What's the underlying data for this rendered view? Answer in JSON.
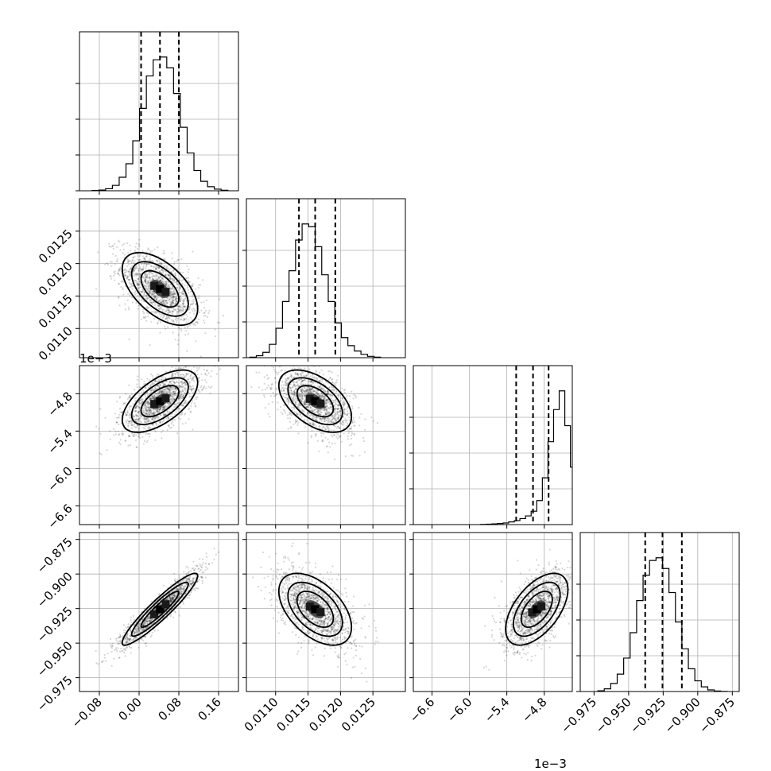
{
  "chart_data": {
    "type": "corner",
    "title": "",
    "n_params": 4,
    "params": [
      {
        "index": 0,
        "xlim": [
          -0.12,
          0.2
        ],
        "ticks": [
          -0.08,
          0.0,
          0.08,
          0.16
        ],
        "tick_labels": [
          "−0.08",
          "0.00",
          "0.08",
          "0.16"
        ],
        "offset_label": "",
        "mean": 0.042,
        "sigma": 0.038,
        "quantiles": [
          0.004,
          0.042,
          0.08
        ],
        "hist_bins": [
          0.002,
          0.005,
          0.015,
          0.04,
          0.1,
          0.2,
          0.37,
          0.61,
          0.85,
          0.97,
          0.99,
          0.91,
          0.72,
          0.47,
          0.28,
          0.15,
          0.07,
          0.03,
          0.012,
          0.004
        ]
      },
      {
        "index": 1,
        "xlim": [
          0.01055,
          0.013
        ],
        "ticks": [
          0.011,
          0.0115,
          0.012,
          0.0125
        ],
        "tick_labels": [
          "0.0110",
          "0.0115",
          "0.0120",
          "0.0125"
        ],
        "offset_label": "",
        "mean": 0.01161,
        "sigma": 0.00028,
        "quantiles": [
          0.01136,
          0.01161,
          0.01192
        ],
        "hist_bins": [
          0.004,
          0.015,
          0.04,
          0.1,
          0.22,
          0.42,
          0.65,
          0.88,
          1.0,
          0.98,
          0.83,
          0.62,
          0.42,
          0.26,
          0.15,
          0.09,
          0.05,
          0.025,
          0.01,
          0.004
        ]
      },
      {
        "index": 2,
        "xlim": [
          -6.9,
          -4.35
        ],
        "ticks": [
          -6.6,
          -6.0,
          -5.4,
          -4.8
        ],
        "tick_labels": [
          "−6.6",
          "−6.0",
          "−5.4",
          "−4.8"
        ],
        "offset_label": "1e−3",
        "mean": -4.92,
        "sigma": 0.25,
        "quantiles": [
          -5.25,
          -4.98,
          -4.73
        ],
        "hist_bins": [
          0.002,
          0.003,
          0.005,
          0.008,
          0.012,
          0.02,
          0.03,
          0.045,
          0.065,
          0.1,
          0.18,
          0.35,
          0.62,
          0.86,
          1.0,
          0.74,
          0.43,
          0.12,
          0.02,
          0.002
        ]
      },
      {
        "index": 3,
        "xlim": [
          -0.985,
          -0.87
        ],
        "ticks": [
          -0.975,
          -0.95,
          -0.925,
          -0.9,
          -0.875
        ],
        "tick_labels": [
          "−0.975",
          "−0.950",
          "−0.925",
          "−0.900",
          "−0.875"
        ],
        "offset_label": "",
        "mean": -0.9255,
        "sigma": 0.013,
        "quantiles": [
          -0.938,
          -0.9255,
          -0.9115
        ],
        "hist_bins": [
          0.005,
          0.02,
          0.06,
          0.13,
          0.25,
          0.44,
          0.68,
          0.87,
          0.98,
          1.0,
          0.92,
          0.74,
          0.52,
          0.32,
          0.17,
          0.08,
          0.035,
          0.012,
          0.004,
          0.001
        ]
      }
    ],
    "correlations": {
      "1_0": -0.55,
      "2_0": 0.6,
      "2_1": -0.5,
      "3_0": 0.93,
      "3_1": -0.5,
      "3_2": 0.55
    },
    "y_axes": [
      {
        "row": 1,
        "ylim": [
          0.01055,
          0.013
        ],
        "ticks": [
          0.011,
          0.0115,
          0.012,
          0.0125
        ],
        "tick_labels": [
          "0.0110",
          "0.0115",
          "0.0120",
          "0.0125"
        ],
        "offset_label": ""
      },
      {
        "row": 2,
        "ylim": [
          -6.9,
          -4.35
        ],
        "ticks": [
          -6.6,
          -6.0,
          -5.4,
          -4.8
        ],
        "tick_labels": [
          "−6.6",
          "−6.0",
          "−5.4",
          "−4.8"
        ],
        "offset_label": "1e−3"
      },
      {
        "row": 3,
        "ylim": [
          -0.985,
          -0.87
        ],
        "ticks": [
          -0.975,
          -0.95,
          -0.925,
          -0.9,
          -0.875
        ],
        "tick_labels": [
          "−0.975",
          "−0.950",
          "−0.925",
          "−0.900",
          "−0.875"
        ],
        "offset_label": ""
      }
    ],
    "grid": true,
    "quantile_levels": [
      0.16,
      0.5,
      0.84
    ]
  }
}
